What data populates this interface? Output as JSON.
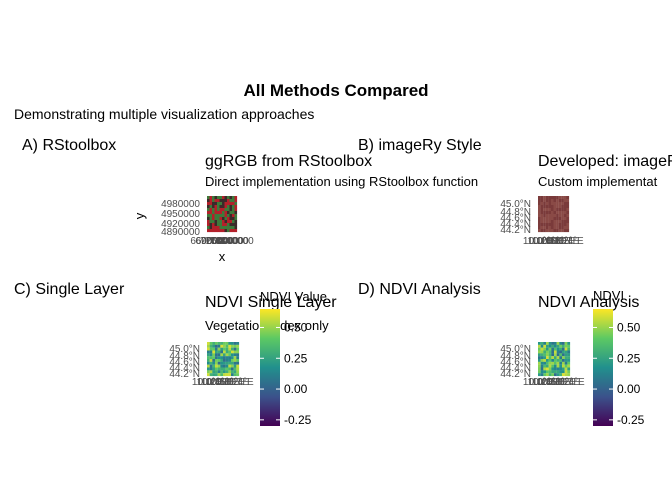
{
  "title": "All Methods Compared",
  "subtitle": "Demonstrating multiple visualization approaches",
  "colors": {
    "rgb_red": "#b3202a",
    "rgb_green": "#3d7a3a",
    "rgb_dark": "#3a2a2a",
    "imagery_fill": "#7a3a3a",
    "viridis": [
      "#440154",
      "#3b528b",
      "#21908d",
      "#5dc963",
      "#fde725"
    ]
  },
  "chart_data": [
    {
      "type": "heatmap",
      "panel_tag": "A) RStoolbox",
      "title": "ggRGB from RStoolbox",
      "subtitle": "Direct implementation using RStoolbox function",
      "xlabel": "x",
      "ylabel": "y",
      "y_ticks": [
        "4980000",
        "4950000",
        "4920000",
        "4890000"
      ],
      "x_ticks": [
        "660000",
        "690000",
        "720000",
        "750000",
        "780000",
        "810000",
        "840000"
      ],
      "render": "rgb"
    },
    {
      "type": "heatmap",
      "panel_tag": "B) imageRy Style",
      "title": "Developed: imageRy",
      "subtitle": "Custom implementat",
      "y_ticks": [
        "45.0°N",
        "44.8°N",
        "44.6°N",
        "44.4°N",
        "44.2°N"
      ],
      "x_ticks": [
        "10.0°E",
        "10.2°E",
        "10.4°E",
        "10.6°E",
        "10.8°E",
        "11.0°E",
        "11.2°E",
        "11.4°E"
      ],
      "render": "imagery"
    },
    {
      "type": "heatmap",
      "panel_tag": "C) Single Layer",
      "title": "NDVI Single Layer",
      "subtitle": "Vegetation index only",
      "y_ticks": [
        "45.0°N",
        "44.8°N",
        "44.6°N",
        "44.4°N",
        "44.2°N"
      ],
      "x_ticks": [
        "10.0°E",
        "10.2°E",
        "10.4°E",
        "10.6°E",
        "10.8°E",
        "11.0°E",
        "11.2°E",
        "11.4°E"
      ],
      "legend_title": "NDVI Value",
      "legend_ticks": [
        "0.50",
        "0.25",
        "0.00",
        "-0.25"
      ],
      "legend_range": [
        -0.3,
        0.65
      ],
      "legend_tick_values": [
        0.5,
        0.25,
        0.0,
        -0.25
      ],
      "render": "ndvi"
    },
    {
      "type": "heatmap",
      "panel_tag": "D) NDVI Analysis",
      "title": "NDVI Analysis",
      "subtitle": "",
      "y_ticks": [
        "45.0°N",
        "44.8°N",
        "44.6°N",
        "44.4°N",
        "44.2°N"
      ],
      "x_ticks": [
        "10.0°E",
        "10.2°E",
        "10.4°E",
        "10.6°E",
        "10.8°E",
        "11.0°E",
        "11.2°E",
        "11.4°E"
      ],
      "legend_title": "NDVI",
      "legend_ticks": [
        "0.50",
        "0.25",
        "0.00",
        "-0.25"
      ],
      "legend_range": [
        -0.3,
        0.65
      ],
      "legend_tick_values": [
        0.5,
        0.25,
        0.0,
        -0.25
      ],
      "render": "ndvi"
    }
  ]
}
